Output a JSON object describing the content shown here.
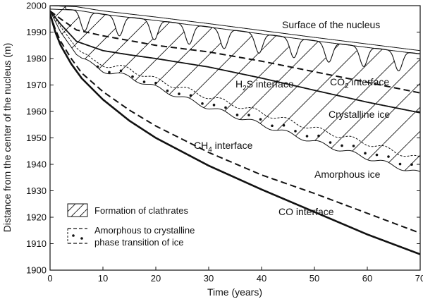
{
  "chart_data": {
    "type": "line",
    "xlabel": "Time (years)",
    "ylabel": "Distance from the center of the nucleus  (m)",
    "xlim": [
      0,
      70
    ],
    "ylim": [
      1900,
      2000
    ],
    "xticks": [
      "0",
      "10",
      "20",
      "30",
      "40",
      "50",
      "60",
      "70"
    ],
    "yticks": [
      "1900",
      "1910",
      "1920",
      "1930",
      "1940",
      "1950",
      "1960",
      "1970",
      "1980",
      "1990",
      "2000"
    ],
    "grid": false,
    "legend_position": "bottom-left",
    "series": [
      {
        "name": "Surface of the nucleus",
        "style": "solid-thin",
        "x": [
          0,
          5,
          10,
          20,
          30,
          40,
          50,
          60,
          70
        ],
        "y": [
          2000,
          1999.6,
          1998,
          1995.7,
          1993.2,
          1990.6,
          1988,
          1985.5,
          1983
        ]
      },
      {
        "name": "CO2 interface",
        "style": "dashed",
        "x": [
          0,
          2,
          5,
          10,
          15,
          20,
          30,
          40,
          50,
          60,
          70
        ],
        "y": [
          1998,
          1995,
          1990.8,
          1988.6,
          1986.8,
          1985,
          1982.5,
          1979,
          1975,
          1971,
          1967
        ]
      },
      {
        "name": "H2S interface",
        "style": "solid",
        "x": [
          0,
          2,
          5,
          10,
          15,
          20,
          30,
          40,
          50,
          60,
          70
        ],
        "y": [
          1998,
          1993,
          1986.5,
          1983,
          1981.4,
          1980,
          1976.8,
          1972.6,
          1968,
          1963.5,
          1959.5
        ]
      },
      {
        "name": "Crystalline ice",
        "style": "dotted-line",
        "x": [
          0,
          2,
          5,
          8,
          10,
          15,
          20,
          30,
          40,
          50,
          60,
          70
        ],
        "y": [
          1998,
          1992,
          1984,
          1979,
          1977.8,
          1976,
          1972,
          1965.5,
          1959.5,
          1953.5,
          1948,
          1942
        ]
      },
      {
        "name": "Amorphous ice",
        "style": "solid-thin",
        "x": [
          0,
          2,
          5,
          8,
          10,
          15,
          20,
          30,
          40,
          50,
          60,
          70
        ],
        "y": [
          1998,
          1990,
          1981.5,
          1977.5,
          1975.5,
          1973,
          1969,
          1961.5,
          1955,
          1948.5,
          1942.5,
          1936.5
        ]
      },
      {
        "name": "CH4 interface",
        "style": "dashed",
        "x": [
          0,
          1,
          2,
          4,
          6,
          10,
          15,
          20,
          30,
          40,
          50,
          60,
          70
        ],
        "y": [
          1997,
          1991,
          1986.5,
          1980,
          1974.5,
          1967.5,
          1960.5,
          1954.5,
          1944.5,
          1936,
          1929,
          1921.5,
          1914
        ]
      },
      {
        "name": "CO interface",
        "style": "solid-thick",
        "x": [
          0,
          1,
          2,
          4,
          6,
          10,
          15,
          20,
          30,
          40,
          50,
          60,
          70
        ],
        "y": [
          1997,
          1990,
          1985,
          1978,
          1972.5,
          1964.5,
          1956.5,
          1950,
          1939.5,
          1930.5,
          1922,
          1913.5,
          1906
        ]
      }
    ]
  },
  "annotations": {
    "surface": "Surface of the nucleus",
    "co2": "CO",
    "co2_sub": "2",
    "co2_tail": " interface",
    "h2s_a": "H",
    "h2s_sub": "2",
    "h2s_b": "S interface",
    "crystalline": "Crystalline ice",
    "ch4": "CH",
    "ch4_sub": "4",
    "ch4_tail": " interface",
    "amorphous": "Amorphous ice",
    "co": "CO interface"
  },
  "legend": {
    "clathrates": "Formation of clathrates",
    "transition_line1": "Amorphous to crystalline",
    "transition_line2": "phase transition of ice"
  }
}
